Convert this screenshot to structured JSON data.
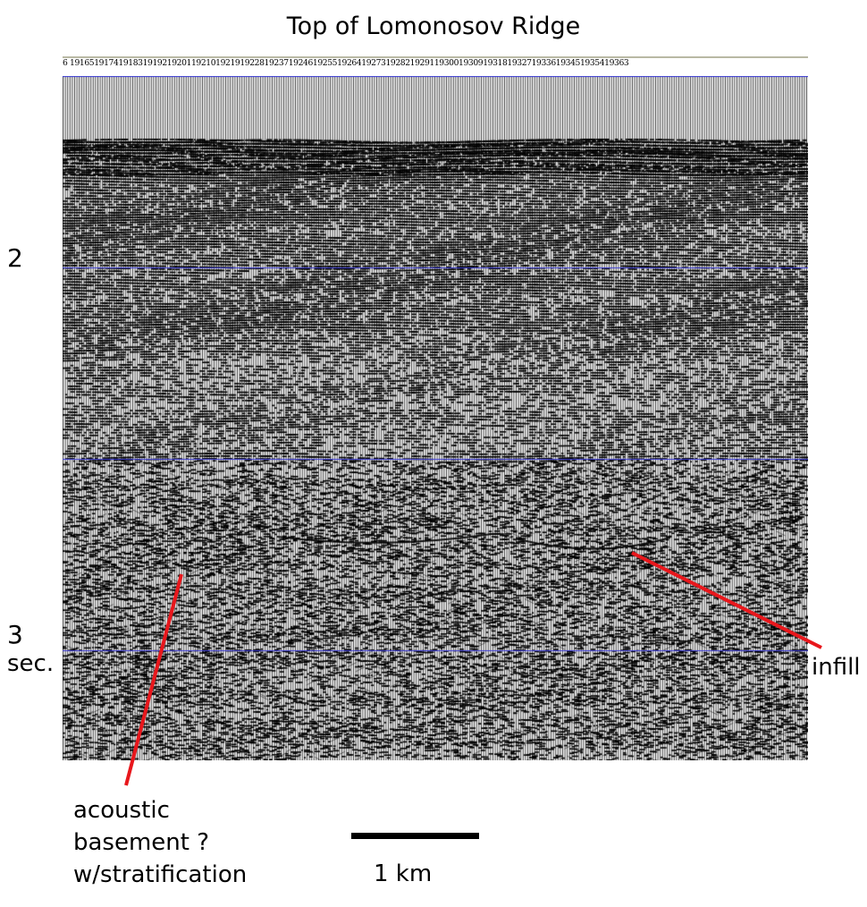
{
  "title": "Top of Lomonosov Ridge",
  "trace_numbers": [
    "6",
    "19165",
    "19174",
    "19183",
    "19192",
    "19201",
    "19210",
    "19219",
    "19228",
    "19237",
    "19246",
    "19255",
    "19264",
    "19273",
    "19282",
    "19291",
    "19300",
    "19309",
    "19318",
    "19327",
    "19336",
    "19345",
    "19354",
    "19363"
  ],
  "time_labels": {
    "t2": "2",
    "t3": "3",
    "unit": "sec."
  },
  "annotations": {
    "acoustic_line1": "acoustic",
    "acoustic_line2": "basement ?",
    "acoustic_line3": "w/stratification",
    "infill": "infill"
  },
  "scale_bar": {
    "label": "1 km"
  },
  "colors": {
    "annotation_line": "#e8171c",
    "gridline": "#3a3ad8",
    "ink": "#000000"
  }
}
